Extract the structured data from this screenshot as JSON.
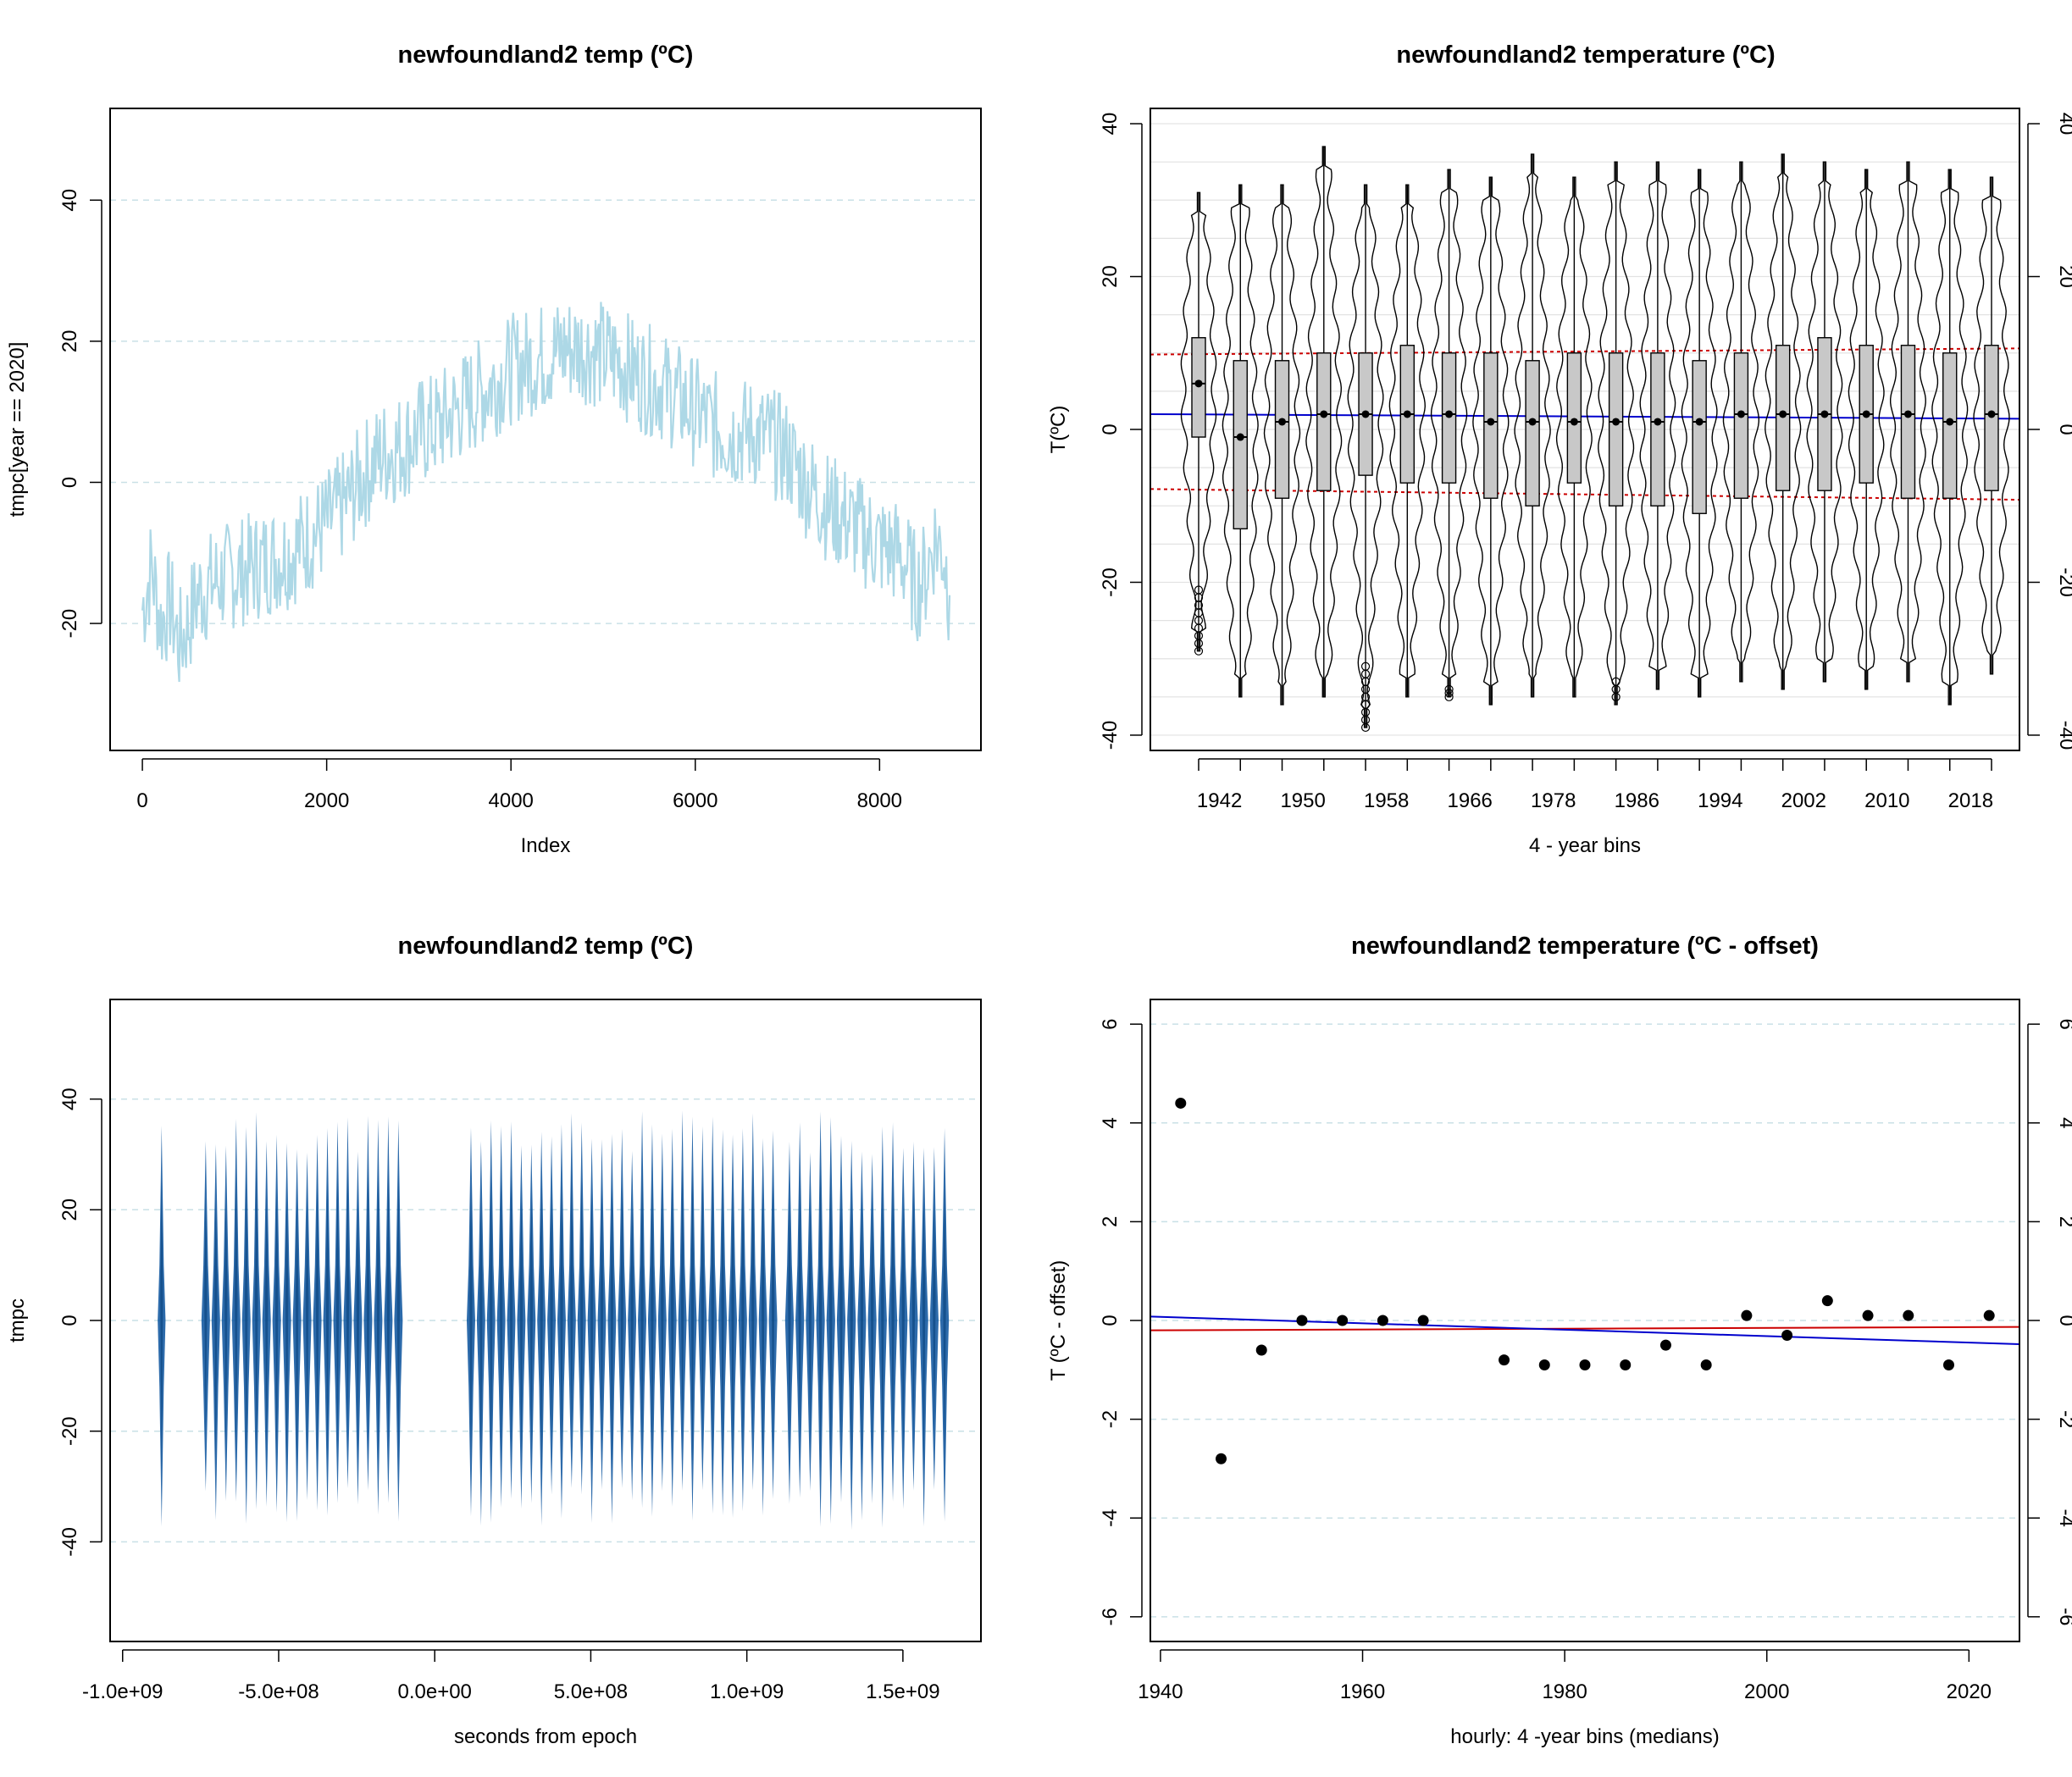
{
  "chart_data": [
    {
      "type": "line",
      "title": "newfoundland2 temp (ºC)",
      "xlabel": "Index",
      "ylabel": "tmpc[year == 2020]",
      "xlim": [
        -350,
        9100
      ],
      "ylim": [
        -38,
        53
      ],
      "xticks": [
        "0",
        "2000",
        "4000",
        "6000",
        "8000"
      ],
      "xtick_values": [
        0,
        2000,
        4000,
        6000,
        8000
      ],
      "yticks": [
        "-20",
        "0",
        "20",
        "40"
      ],
      "ytick_values": [
        -20,
        0,
        20,
        40
      ],
      "grid": true,
      "line_color": "#add8e6",
      "series": [
        {
          "x": [
            0,
            100,
            200,
            300,
            400,
            500,
            600,
            800,
            1000,
            1200,
            1400,
            1600,
            1800,
            2000,
            2200,
            2400,
            2600,
            2800,
            3000,
            3200,
            3400,
            3600,
            3800,
            4000,
            4200,
            4400,
            4600,
            4800,
            5000,
            5200,
            5400,
            5600,
            5800,
            6000,
            6200,
            6400,
            6600,
            6800,
            7000,
            7200,
            7400,
            7600,
            7800,
            8000,
            8200,
            8300,
            8400,
            8500,
            8600,
            8700,
            8760
          ],
          "y": [
            -18,
            -12,
            -20,
            -17,
            -23,
            -20,
            -16,
            -14,
            -13,
            -12,
            -11,
            -10,
            -8,
            -6,
            -3,
            1,
            4,
            5,
            7,
            8,
            10,
            12,
            14,
            16,
            17,
            18,
            19,
            19,
            18,
            17,
            15,
            14,
            12,
            10,
            8,
            7,
            7,
            6,
            4,
            0,
            -3,
            -5,
            -7,
            -9,
            -10,
            -12,
            -15,
            -13,
            -8,
            -10,
            -16
          ]
        }
      ]
    },
    {
      "type": "violin",
      "title": "newfoundland2 temperature (ºC)",
      "xlabel": "4 - year bins",
      "ylabel": "T(ºC)",
      "ylim": [
        -42,
        42
      ],
      "yticks": [
        "-40",
        "-20",
        "0",
        "20",
        "40"
      ],
      "ytick_values": [
        -40,
        -20,
        0,
        20,
        40
      ],
      "xtick_labels": [
        "1942",
        "1950",
        "1958",
        "1966",
        "1978",
        "1986",
        "1994",
        "2002",
        "2010",
        "2018"
      ],
      "xtick_bins": [
        1942,
        1950,
        1958,
        1966,
        1978,
        1986,
        1994,
        2002,
        2010,
        2018
      ],
      "grid": true,
      "bins": [
        {
          "year": 1942,
          "min": -29,
          "q1": -1,
          "median": 6,
          "q3": 12,
          "max": 31,
          "mean": 6
        },
        {
          "year": 1946,
          "min": -35,
          "q1": -13,
          "median": -1,
          "q3": 9,
          "max": 32,
          "mean": -1
        },
        {
          "year": 1950,
          "min": -36,
          "q1": -9,
          "median": 1,
          "q3": 9,
          "max": 32,
          "mean": 1
        },
        {
          "year": 1954,
          "min": -35,
          "q1": -8,
          "median": 2,
          "q3": 10,
          "max": 37,
          "mean": 2
        },
        {
          "year": 1958,
          "min": -39,
          "q1": -6,
          "median": 2,
          "q3": 10,
          "max": 32,
          "mean": 2
        },
        {
          "year": 1962,
          "min": -35,
          "q1": -7,
          "median": 2,
          "q3": 11,
          "max": 32,
          "mean": 2
        },
        {
          "year": 1966,
          "min": -35,
          "q1": -7,
          "median": 2,
          "q3": 10,
          "max": 34,
          "mean": 2
        },
        {
          "year": 1970,
          "min": -36,
          "q1": -9,
          "median": 1,
          "q3": 10,
          "max": 33,
          "mean": 1
        },
        {
          "year": 1974,
          "min": -35,
          "q1": -10,
          "median": 1,
          "q3": 9,
          "max": 36,
          "mean": 1
        },
        {
          "year": 1978,
          "min": -35,
          "q1": -7,
          "median": 1,
          "q3": 10,
          "max": 33,
          "mean": 1
        },
        {
          "year": 1982,
          "min": -36,
          "q1": -10,
          "median": 1,
          "q3": 10,
          "max": 35,
          "mean": 1
        },
        {
          "year": 1986,
          "min": -34,
          "q1": -10,
          "median": 1,
          "q3": 10,
          "max": 35,
          "mean": 1
        },
        {
          "year": 1990,
          "min": -35,
          "q1": -11,
          "median": 1,
          "q3": 9,
          "max": 34,
          "mean": 1
        },
        {
          "year": 1994,
          "min": -33,
          "q1": -9,
          "median": 2,
          "q3": 10,
          "max": 35,
          "mean": 2
        },
        {
          "year": 1998,
          "min": -34,
          "q1": -8,
          "median": 2,
          "q3": 11,
          "max": 36,
          "mean": 2
        },
        {
          "year": 2002,
          "min": -33,
          "q1": -8,
          "median": 2,
          "q3": 12,
          "max": 35,
          "mean": 2
        },
        {
          "year": 2006,
          "min": -34,
          "q1": -7,
          "median": 2,
          "q3": 11,
          "max": 34,
          "mean": 2
        },
        {
          "year": 2010,
          "min": -33,
          "q1": -9,
          "median": 2,
          "q3": 11,
          "max": 35,
          "mean": 2
        },
        {
          "year": 2014,
          "min": -36,
          "q1": -9,
          "median": 1,
          "q3": 10,
          "max": 34,
          "mean": 1
        },
        {
          "year": 2018,
          "min": -32,
          "q1": -8,
          "median": 2,
          "q3": 11,
          "max": 33,
          "mean": 2
        }
      ],
      "trend_line": {
        "color": "#0000cd",
        "y_start": 2,
        "y_end": 1.4
      },
      "upper_dotted": {
        "color": "#cc0000",
        "y_start": 9.8,
        "y_end": 10.6
      },
      "lower_dotted": {
        "color": "#cc0000",
        "y_start": -7.8,
        "y_end": -9.2
      },
      "outliers": [
        {
          "year": 1942,
          "values": [
            -21,
            -22,
            -23,
            -24,
            -25,
            -26,
            -27,
            -28,
            -29
          ]
        },
        {
          "year": 1958,
          "values": [
            -31,
            -32,
            -33,
            -34,
            -35,
            -36,
            -37,
            -38,
            -39
          ]
        },
        {
          "year": 1966,
          "values": [
            -34,
            -34.5,
            -35
          ]
        },
        {
          "year": 1982,
          "values": [
            -33,
            -34,
            -35
          ]
        }
      ]
    },
    {
      "type": "heatmap",
      "title": "newfoundland2 temp (ºC)",
      "xlabel": "seconds from epoch",
      "ylabel": "tmpc",
      "xlim": [
        -1040000000.0,
        1750000000.0
      ],
      "ylim": [
        -58,
        58
      ],
      "xticks": [
        "-1.0e+09",
        "-5.0e+08",
        "0.0e+00",
        "5.0e+08",
        "1.0e+09",
        "1.5e+09"
      ],
      "xtick_values": [
        -1000000000.0,
        -500000000.0,
        0,
        500000000.0,
        1000000000.0,
        1500000000.0
      ],
      "yticks": [
        "-40",
        "-20",
        "0",
        "20",
        "40"
      ],
      "ytick_values": [
        -40,
        -20,
        0,
        20,
        40
      ],
      "grid": true,
      "color": "#08519c",
      "data_segments": [
        {
          "start": -890000000.0,
          "end": -860000000.0,
          "count": 1
        },
        {
          "start": -750000000.0,
          "end": -100000000.0,
          "count": 20
        },
        {
          "start": 100000000.0,
          "end": 1100000000.0,
          "count": 31
        },
        {
          "start": 1120000000.0,
          "end": 1650000000.0,
          "count": 16
        }
      ]
    },
    {
      "type": "scatter",
      "title": "newfoundland2 temperature (ºC - offset)",
      "xlabel": "hourly:  4 -year bins (medians)",
      "ylabel": "T (ºC - offset)",
      "xlim": [
        1939,
        2025
      ],
      "ylim": [
        -6.5,
        6.5
      ],
      "xticks": [
        "1940",
        "1960",
        "1980",
        "2000",
        "2020"
      ],
      "xtick_values": [
        1940,
        1960,
        1980,
        2000,
        2020
      ],
      "yticks": [
        "-6",
        "-4",
        "-2",
        "0",
        "2",
        "4",
        "6"
      ],
      "ytick_values": [
        -6,
        -4,
        -2,
        0,
        2,
        4,
        6
      ],
      "grid": true,
      "x": [
        1942,
        1946,
        1950,
        1954,
        1958,
        1962,
        1966,
        1974,
        1978,
        1982,
        1986,
        1990,
        1994,
        1998,
        2002,
        2006,
        2010,
        2014,
        2018,
        2022
      ],
      "y": [
        4.4,
        -2.8,
        -0.6,
        0,
        0,
        0,
        0,
        -0.8,
        -0.9,
        -0.9,
        -0.9,
        -0.5,
        -0.9,
        0.1,
        -0.3,
        0.4,
        0.1,
        0.1,
        -0.9,
        0.1
      ],
      "trend_line": {
        "color": "#0000cd",
        "y_at_xmin": 0.08,
        "y_at_xmax": -0.48
      },
      "reference_line": {
        "color": "#cc0000",
        "y_at_xmin": -0.2,
        "y_at_xmax": -0.13
      }
    }
  ]
}
